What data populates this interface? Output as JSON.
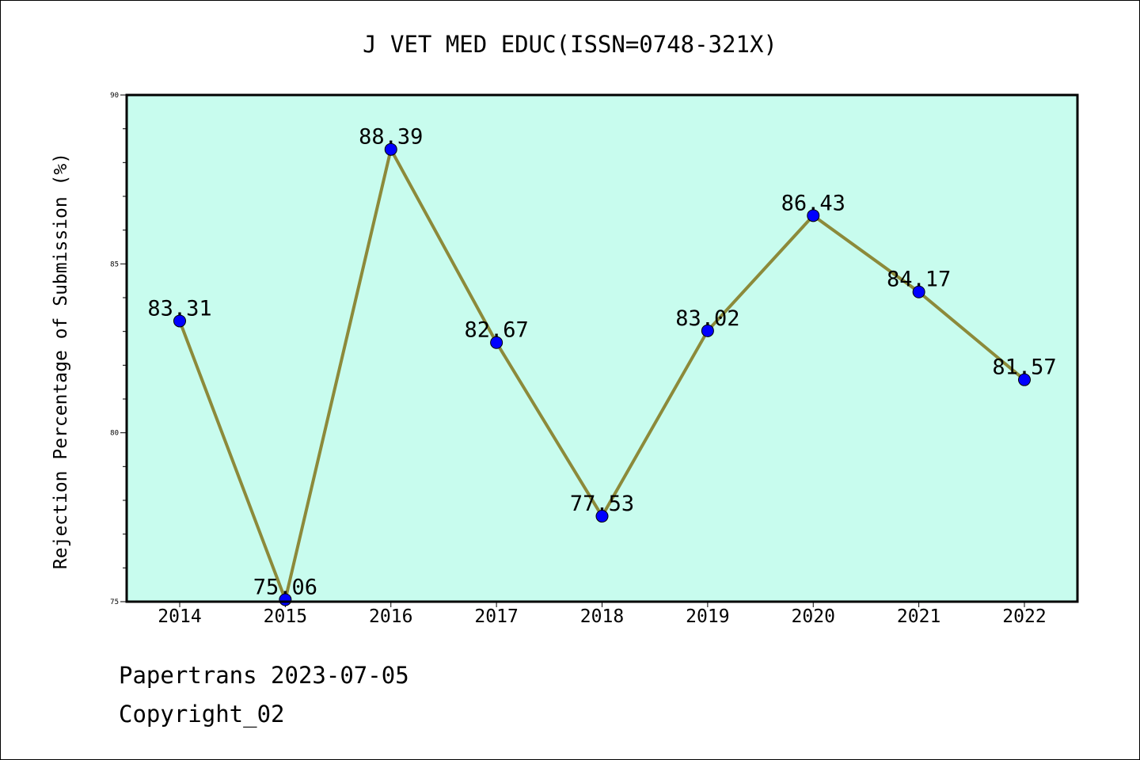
{
  "chart_data": {
    "type": "line",
    "title": "J VET MED EDUC(ISSN=0748-321X)",
    "xlabel": "",
    "ylabel": "Rejection Percentage of Submission (%)",
    "categories": [
      "2014",
      "2015",
      "2016",
      "2017",
      "2018",
      "2019",
      "2020",
      "2021",
      "2022"
    ],
    "series": [
      {
        "values": [
          83.31,
          75.06,
          88.39,
          82.67,
          77.53,
          83.02,
          86.43,
          84.17,
          81.57
        ],
        "labels": [
          "83.31",
          "75.06",
          "88.39",
          "82.67",
          "77.53",
          "83.02",
          "86.43",
          "84.17",
          "81.57"
        ]
      }
    ],
    "ylim": [
      75,
      90
    ],
    "yticks": [
      "75",
      "80",
      "85",
      "90"
    ],
    "y_minor_step": 1,
    "grid": false,
    "legend": "none",
    "colors": {
      "plot_background": "#c8fcee",
      "line": "#8c8a3a",
      "marker": "#0000ff"
    }
  },
  "footer": {
    "date_line": "Papertrans 2023-07-05",
    "copyright_line": "Copyright_02"
  }
}
